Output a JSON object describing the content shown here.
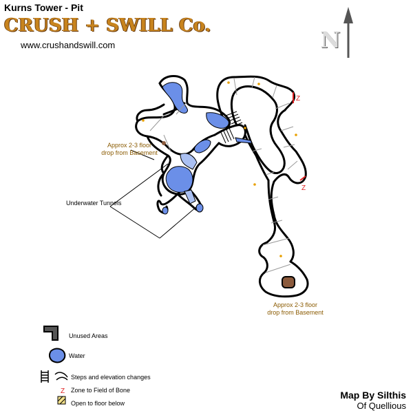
{
  "header": {
    "title": "Kurns Tower - Pit",
    "brand": "CRUSH + SWILL Co.",
    "website": "www.crushandswill.com"
  },
  "compass": {
    "letter": "N",
    "icon": "north-arrow-icon"
  },
  "annotations": {
    "drop_left": [
      "Approx 2-3 floor",
      "drop from Basement"
    ],
    "drop_right": [
      "Approx 2-3 floor",
      "drop from Basement"
    ],
    "underwater": "Underwater Tunnels",
    "zone_marker": "Z"
  },
  "legend": {
    "unused": "Unused Areas",
    "water": "Water",
    "steps": "Steps and elevation changes",
    "zone": "Zone to Field of Bone",
    "open": "Open to floor below"
  },
  "credit": {
    "line1": "Map By Silthis",
    "line2": "Of Quellious"
  },
  "colors": {
    "water": "#6b8fe8",
    "water_light": "#aac0f2",
    "wall": "#000000",
    "note": "#8a5a00",
    "zone": "#e02020",
    "spawn_dot": "#e8a000",
    "drop_hole": "#8b5a3c"
  }
}
